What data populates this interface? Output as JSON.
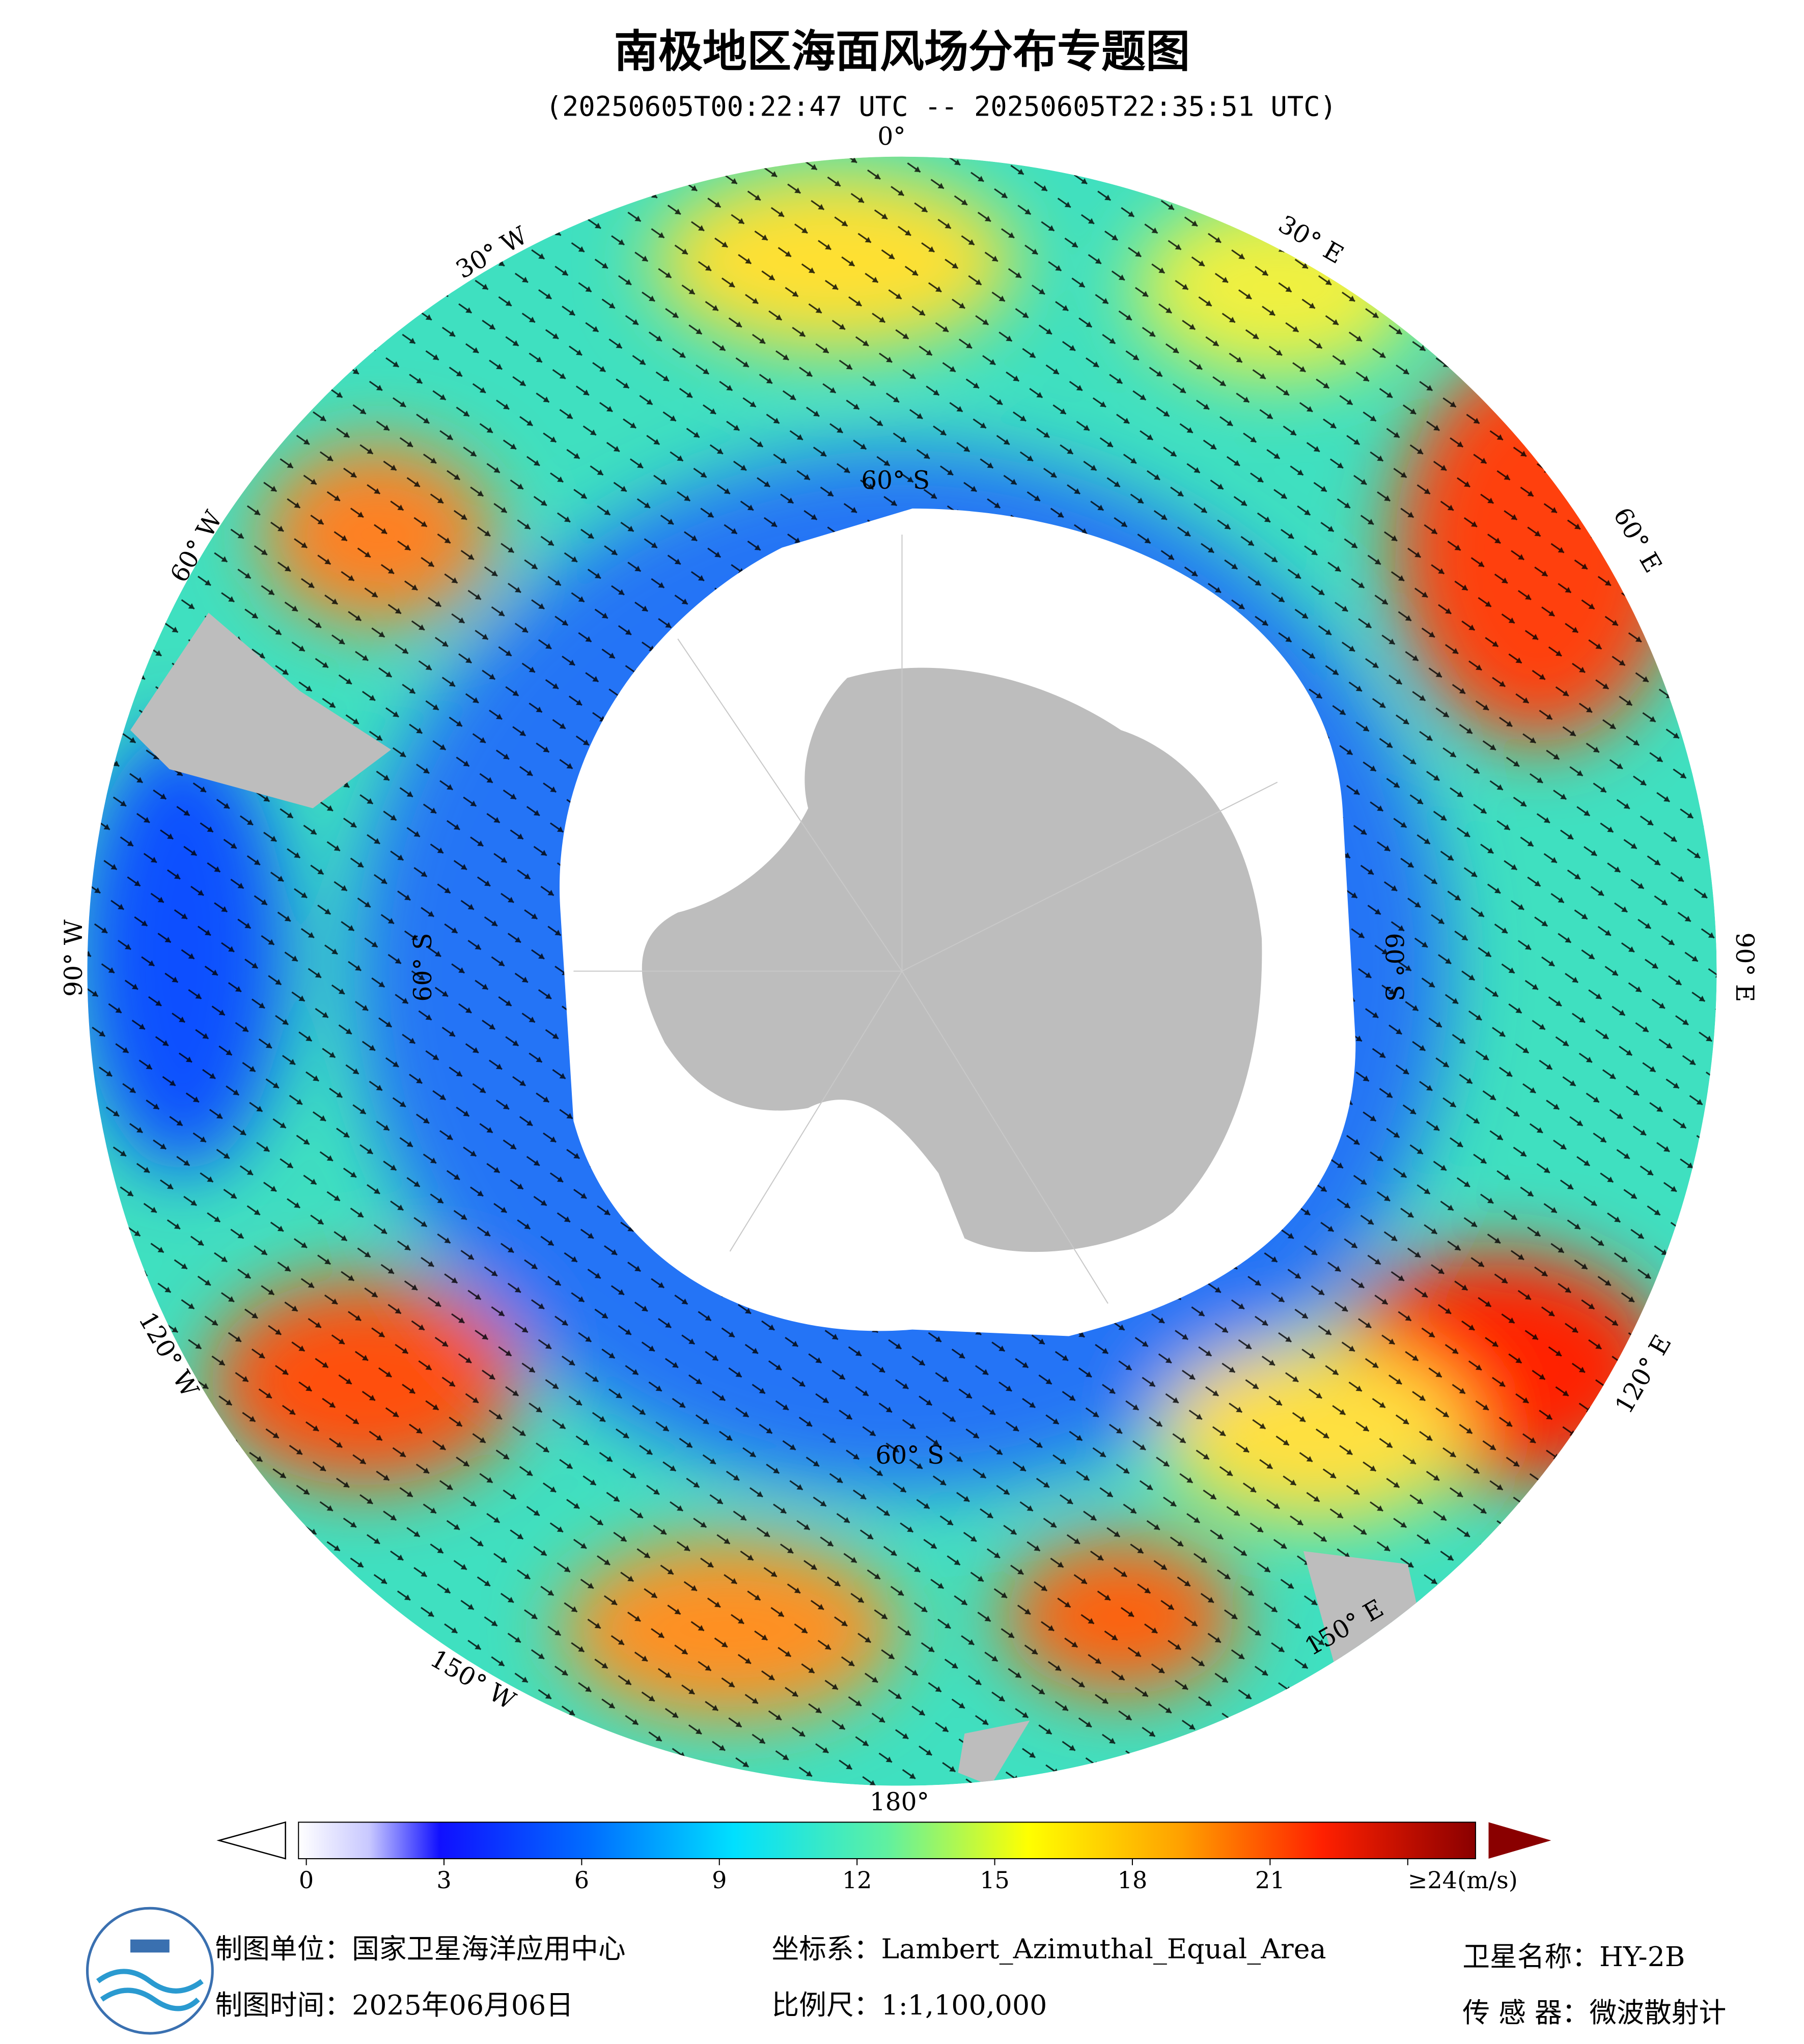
{
  "header": {
    "title": "南极地区海面风场分布专题图",
    "subtitle": "(20250605T00:22:47 UTC -- 20250605T22:35:51 UTC)"
  },
  "map": {
    "lon_labels": [
      "0°",
      "30° E",
      "60° E",
      "90° E",
      "120° E",
      "150° E",
      "180°",
      "150° W",
      "120° W",
      "90° W",
      "60° W",
      "30° W"
    ],
    "lat_labels": [
      "60° S",
      "60° S",
      "60° S",
      "60° S"
    ]
  },
  "colorbar": {
    "range": [
      0,
      24
    ],
    "ticks": [
      0,
      3,
      6,
      9,
      12,
      15,
      18,
      21,
      {
        "value": 24,
        "label": "≥24(m/s)"
      }
    ]
  },
  "footer": {
    "unit": "制图单位：国家卫星海洋应用中心",
    "date": "制图时间：2025年06月06日",
    "crs": "坐标系：Lambert_Azimuthal_Equal_Area",
    "scale": "比例尺：1:1,100,000",
    "satellite": "卫星名称：HY-2B",
    "sensor": "传 感 器：微波散射计"
  }
}
